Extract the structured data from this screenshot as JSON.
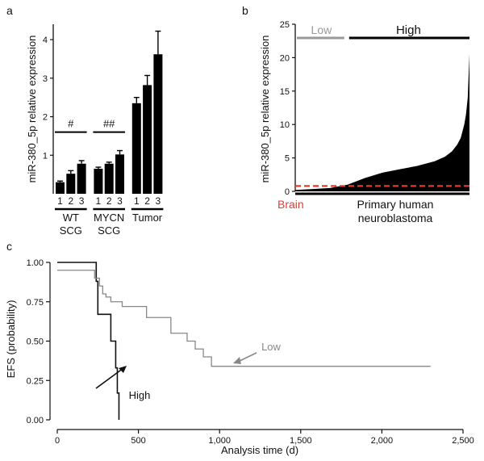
{
  "chart_data": [
    {
      "panel": "a",
      "type": "bar",
      "ylabel": "miR-380_5p relative expression",
      "ylim": [
        0,
        4.4
      ],
      "yticks": [
        1,
        2,
        3,
        4
      ],
      "categories": [
        "1",
        "2",
        "3",
        "1",
        "2",
        "3",
        "1",
        "2",
        "3"
      ],
      "values": [
        0.3,
        0.52,
        0.78,
        0.65,
        0.78,
        1.02,
        2.35,
        2.82,
        3.62
      ],
      "errors": [
        0.03,
        0.08,
        0.08,
        0.04,
        0.04,
        0.1,
        0.15,
        0.25,
        0.6
      ],
      "groups": [
        {
          "label_line1": "WT",
          "label_line2": "SCG",
          "bars": [
            0,
            2
          ]
        },
        {
          "label_line1": "MYCN",
          "label_line2": "SCG",
          "bars": [
            3,
            5
          ]
        },
        {
          "label_line1": "Tumor",
          "label_line2": "",
          "bars": [
            6,
            8
          ]
        }
      ],
      "annotations": [
        {
          "text": "#",
          "from_bar": 0,
          "to_bar": 2,
          "y": 1.6
        },
        {
          "text": "##",
          "from_bar": 3,
          "to_bar": 5,
          "y": 1.6
        }
      ]
    },
    {
      "panel": "b",
      "type": "area",
      "ylabel": "miR-380_5p relative expression",
      "ylim": [
        0,
        25
      ],
      "yticks": [
        0,
        5,
        10,
        15,
        20,
        25
      ],
      "profile_x": [
        0,
        0.2,
        0.3,
        0.4,
        0.5,
        0.6,
        0.7,
        0.8,
        0.86,
        0.9,
        0.93,
        0.95,
        0.97,
        0.98,
        0.99,
        1.0
      ],
      "profile_y": [
        0.2,
        0.5,
        1.0,
        2.0,
        2.8,
        3.3,
        3.8,
        4.5,
        5.2,
        6.0,
        7.0,
        8.0,
        10.0,
        11.5,
        14.0,
        20.5
      ],
      "brain_level": 0.8,
      "brain_color": "#e53a2e",
      "low_label": "Low",
      "low_color": "#999999",
      "low_range": [
        0,
        0.3
      ],
      "high_label": "High",
      "high_range": [
        0.3,
        1.0
      ],
      "brain_label": "Brain",
      "xlabel_line1": "Primary human",
      "xlabel_line2": "neuroblastoma"
    },
    {
      "panel": "c",
      "type": "line",
      "xlabel": "Analysis time (d)",
      "ylabel": "EFS (probability)",
      "xlim": [
        0,
        2500
      ],
      "ylim": [
        0,
        1
      ],
      "xticks": [
        0,
        500,
        1000,
        1500,
        2000,
        2500
      ],
      "xtick_labels": [
        "0",
        "500",
        "1,000",
        "1,500",
        "2,000",
        "2,500"
      ],
      "yticks": [
        0,
        0.25,
        0.5,
        0.75,
        1.0
      ],
      "ytick_labels": [
        "0.00",
        "0.25",
        "0.50",
        "0.75",
        "1.00"
      ],
      "series": [
        {
          "name": "High",
          "color": "#111111",
          "x": [
            0,
            240,
            240,
            250,
            250,
            330,
            330,
            360,
            360,
            370,
            370,
            380,
            380
          ],
          "y": [
            1.0,
            1.0,
            0.88,
            0.88,
            0.67,
            0.67,
            0.5,
            0.5,
            0.33,
            0.33,
            0.17,
            0.17,
            0.0
          ]
        },
        {
          "name": "Low",
          "color": "#888888",
          "x": [
            0,
            230,
            230,
            260,
            260,
            280,
            280,
            300,
            300,
            330,
            330,
            400,
            400,
            550,
            550,
            700,
            700,
            800,
            800,
            850,
            850,
            900,
            900,
            950,
            950,
            2300
          ],
          "y": [
            0.95,
            0.95,
            0.9,
            0.9,
            0.85,
            0.85,
            0.8,
            0.8,
            0.78,
            0.78,
            0.75,
            0.75,
            0.72,
            0.72,
            0.65,
            0.65,
            0.55,
            0.55,
            0.5,
            0.5,
            0.45,
            0.45,
            0.4,
            0.4,
            0.34,
            0.34
          ]
        }
      ]
    }
  ]
}
